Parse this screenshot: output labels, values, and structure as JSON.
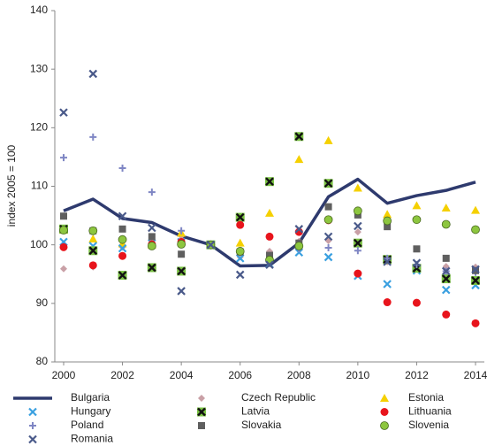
{
  "chart_data": {
    "type": "line-scatter",
    "y_label": "index 2005 = 100",
    "x": [
      2000,
      2001,
      2002,
      2003,
      2004,
      2005,
      2006,
      2007,
      2008,
      2009,
      2010,
      2011,
      2012,
      2013,
      2014
    ],
    "xlim": [
      1999.7,
      2014.3
    ],
    "xticks": [
      2000,
      2002,
      2004,
      2006,
      2008,
      2010,
      2012,
      2014
    ],
    "ylim": [
      80,
      140
    ],
    "yticks": [
      80,
      90,
      100,
      110,
      120,
      130,
      140
    ],
    "legend": "bottom",
    "series": [
      {
        "name": "Bulgaria",
        "marker": "line",
        "color": "#2e3a6e",
        "values": [
          105.8,
          107.8,
          104.5,
          103.8,
          101.5,
          100,
          96.4,
          96.5,
          100.3,
          108.2,
          111.2,
          107.1,
          108.4,
          109.3,
          110.7
        ]
      },
      {
        "name": "Czech Republic",
        "marker": "diamond",
        "color": "#c9a0a6",
        "values": [
          95.9,
          96.2,
          99.6,
          100.2,
          101.5,
          100,
          97.9,
          98.9,
          100.6,
          100.7,
          102.2,
          97.1,
          96.5,
          96.3,
          96.2
        ]
      },
      {
        "name": "Estonia",
        "marker": "triangle",
        "color": "#f5d000",
        "values": [
          102.5,
          101,
          100.2,
          100,
          102,
          100,
          100.3,
          105.4,
          114.6,
          117.8,
          109.7,
          105.2,
          106.7,
          106.3,
          105.9
        ]
      },
      {
        "name": "Hungary",
        "marker": "x",
        "color": "#3aa0e0",
        "values": [
          100.5,
          99.8,
          99.4,
          100.3,
          100.5,
          100,
          97.7,
          96.7,
          98.7,
          97.9,
          94.7,
          93.3,
          95.6,
          92.3,
          93.1
        ]
      },
      {
        "name": "Latvia",
        "marker": "boxed-x",
        "color": "#111111",
        "fill": "#7ac143",
        "values": [
          102.7,
          99,
          94.8,
          96.1,
          95.5,
          100,
          104.7,
          110.8,
          118.5,
          110.5,
          100.3,
          97.5,
          96,
          94.2,
          93.9
        ]
      },
      {
        "name": "Lithuania",
        "marker": "circle",
        "color": "#e8141c",
        "values": [
          99.6,
          96.5,
          98.1,
          100.1,
          100.5,
          100,
          103.4,
          101.4,
          102.2,
          104.2,
          95.1,
          90.2,
          90.1,
          88.1,
          86.6
        ]
      },
      {
        "name": "Poland",
        "marker": "plus",
        "color": "#7f86c4",
        "values": [
          114.9,
          118.4,
          113.1,
          109,
          102.4,
          100,
          98.8,
          97.7,
          99.3,
          99.5,
          99,
          97.7,
          96.6,
          95.5,
          95.3
        ]
      },
      {
        "name": "Slovakia",
        "marker": "square",
        "color": "#5f5f5f",
        "values": [
          104.9,
          102.4,
          102.7,
          101.4,
          98.4,
          100,
          98.8,
          98.2,
          100.3,
          106.5,
          105.1,
          103.1,
          99.3,
          97.7,
          95.6
        ]
      },
      {
        "name": "Slovenia",
        "marker": "circle",
        "color": "#8dc63f",
        "values": [
          102.5,
          102.4,
          100.9,
          99.8,
          100.1,
          100,
          98.9,
          97.4,
          99.8,
          104.3,
          105.8,
          104.1,
          104.3,
          103.5,
          102.6
        ]
      },
      {
        "name": "Romania",
        "marker": "x",
        "color": "#4a5a8a",
        "values": [
          122.6,
          129.2,
          104.9,
          102.9,
          92.1,
          100,
          94.9,
          96.6,
          102.7,
          101.4,
          103.2,
          97.1,
          96.9,
          95.5,
          95.8
        ]
      }
    ]
  }
}
